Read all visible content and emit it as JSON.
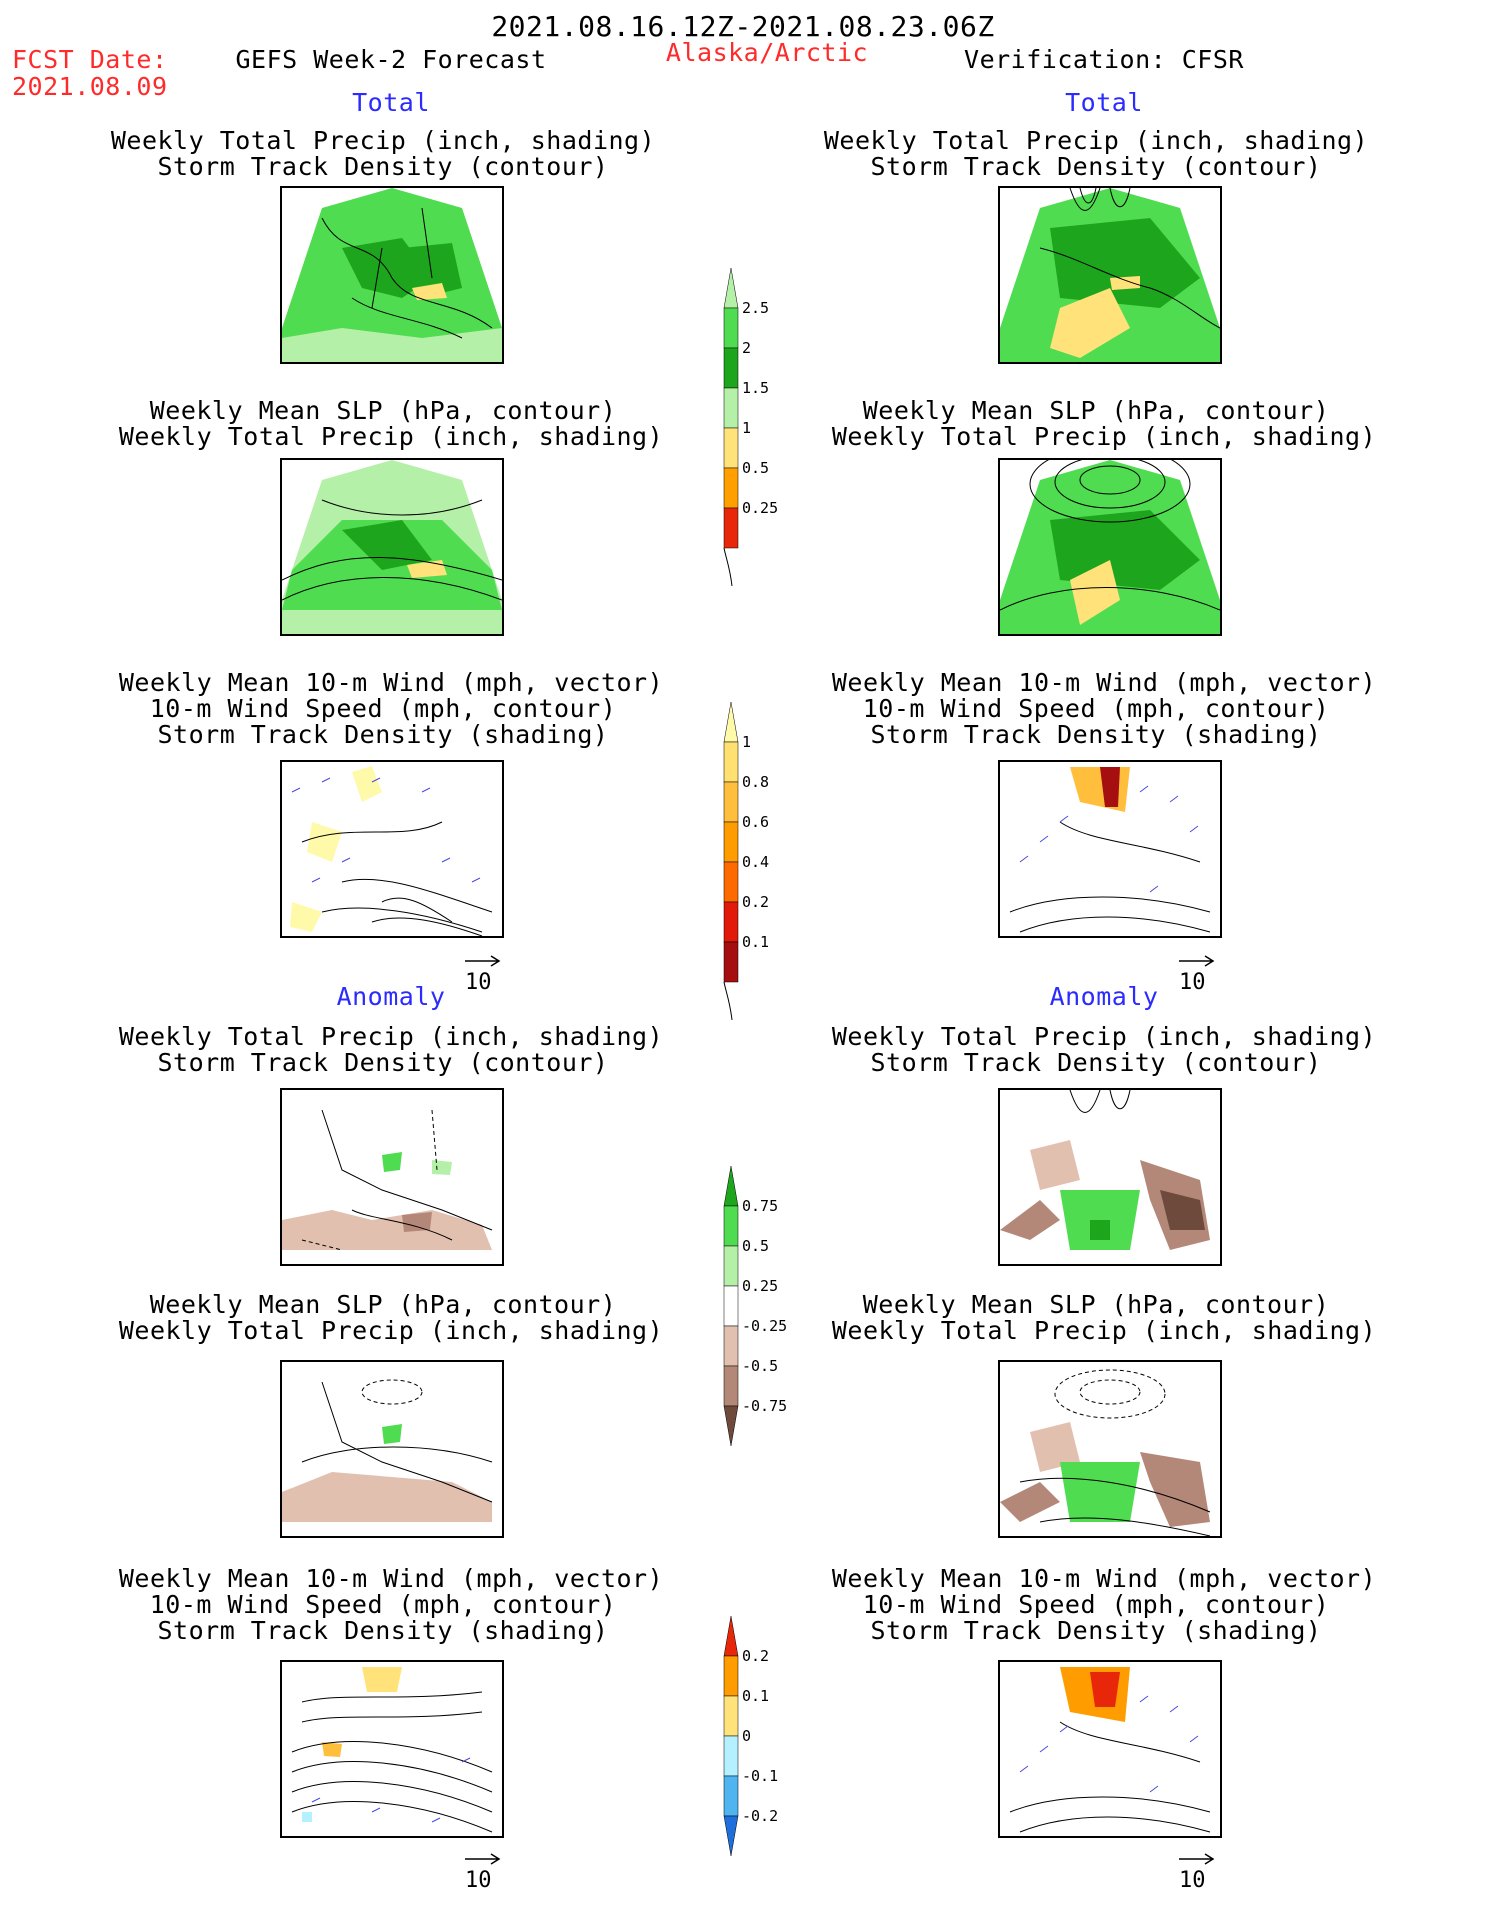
{
  "header": {
    "date_range": "2021.08.16.12Z-2021.08.23.06Z",
    "fcst_label": "FCST Date:",
    "fcst_date": "2021.08.09",
    "left_title": "GEFS Week-2 Forecast",
    "region": "Alaska/Arctic",
    "right_title": "Verification: CFSR"
  },
  "sections": {
    "total": "Total",
    "anomaly": "Anomaly"
  },
  "panel_titles": {
    "precip_track": [
      "Weekly Total Precip (inch, shading)",
      "Storm Track Density (contour)"
    ],
    "slp_precip": [
      "Weekly Mean SLP (hPa, contour)",
      "Weekly Total Precip (inch, shading)"
    ],
    "wind_track": [
      "Weekly Mean 10-m Wind (mph, vector)",
      "10-m Wind Speed (mph, contour)",
      "Storm Track Density (shading)"
    ]
  },
  "vector_label": "10",
  "colorbars": {
    "precip_total": {
      "labels": [
        "0.25",
        "0.5",
        "1",
        "1.5",
        "2",
        "2.5"
      ],
      "colors": [
        "#b4f0a8",
        "#50dc50",
        "#1ea51e",
        "#b4f0a8",
        "#ffe27a",
        "#ffa000",
        "#e8260a"
      ]
    },
    "storm_total": {
      "labels": [
        "0.1",
        "0.2",
        "0.4",
        "0.6",
        "0.8",
        "1"
      ],
      "colors": [
        "#fffaaa",
        "#ffe070",
        "#ffbe3c",
        "#ff9c00",
        "#ff6a00",
        "#e11a0a",
        "#a50f0f"
      ]
    },
    "precip_anom": {
      "labels": [
        "0.75",
        "0.5",
        "0.25",
        "-0.25",
        "-0.5",
        "-0.75"
      ],
      "colors": [
        "#1ea51e",
        "#50dc50",
        "#b4f0a8",
        "#ffffff",
        "#e2c0b0",
        "#b48878",
        "#6e4a3c"
      ]
    },
    "storm_anom": {
      "labels": [
        "0.2",
        "0.1",
        "0",
        "-0.1",
        "-0.2"
      ],
      "colors": [
        "#e8260a",
        "#ff9c00",
        "#ffe27a",
        "#b4f0ff",
        "#50b4f0",
        "#1e6edc"
      ]
    }
  }
}
